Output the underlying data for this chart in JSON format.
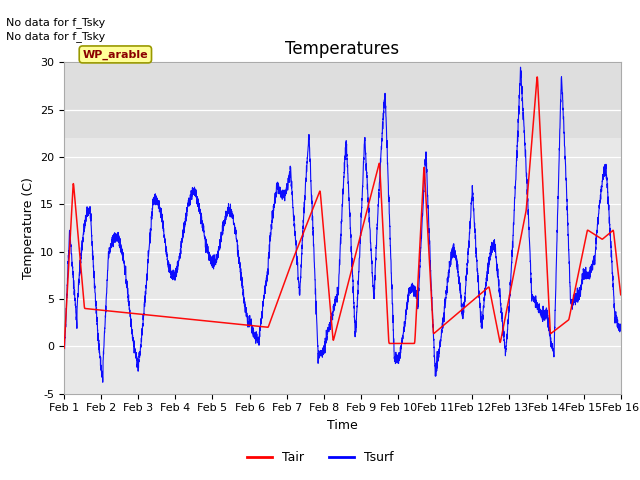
{
  "title": "Temperatures",
  "xlabel": "Time",
  "ylabel": "Temperature (C)",
  "ylim": [
    -5,
    30
  ],
  "xlim": [
    0,
    15
  ],
  "xtick_labels": [
    "Feb 1",
    "Feb 2",
    "Feb 3",
    "Feb 4",
    "Feb 5",
    "Feb 6",
    "Feb 7",
    "Feb 8",
    "Feb 9",
    "Feb 10",
    "Feb 11",
    "Feb 12",
    "Feb 13",
    "Feb 14",
    "Feb 15",
    "Feb 16"
  ],
  "ytick_values": [
    -5,
    0,
    5,
    10,
    15,
    20,
    25,
    30
  ],
  "tair_color": "#FF0000",
  "tsurf_color": "#0000FF",
  "plot_bg_color": "#e8e8e8",
  "upper_band_color": "#d4d4d4",
  "grid_color": "#ffffff",
  "annotation_text1": "No data for f_Tsky",
  "annotation_text2": "No data for f_Tsky",
  "box_label": "WP_arable",
  "box_facecolor": "#FFFF99",
  "box_edgecolor": "#999900",
  "box_text_color": "#8B0000",
  "title_fontsize": 12,
  "axis_label_fontsize": 9,
  "tick_fontsize": 8,
  "annot_fontsize": 8,
  "legend_fontsize": 9,
  "legend_labels": [
    "Tair",
    "Tsurf"
  ]
}
